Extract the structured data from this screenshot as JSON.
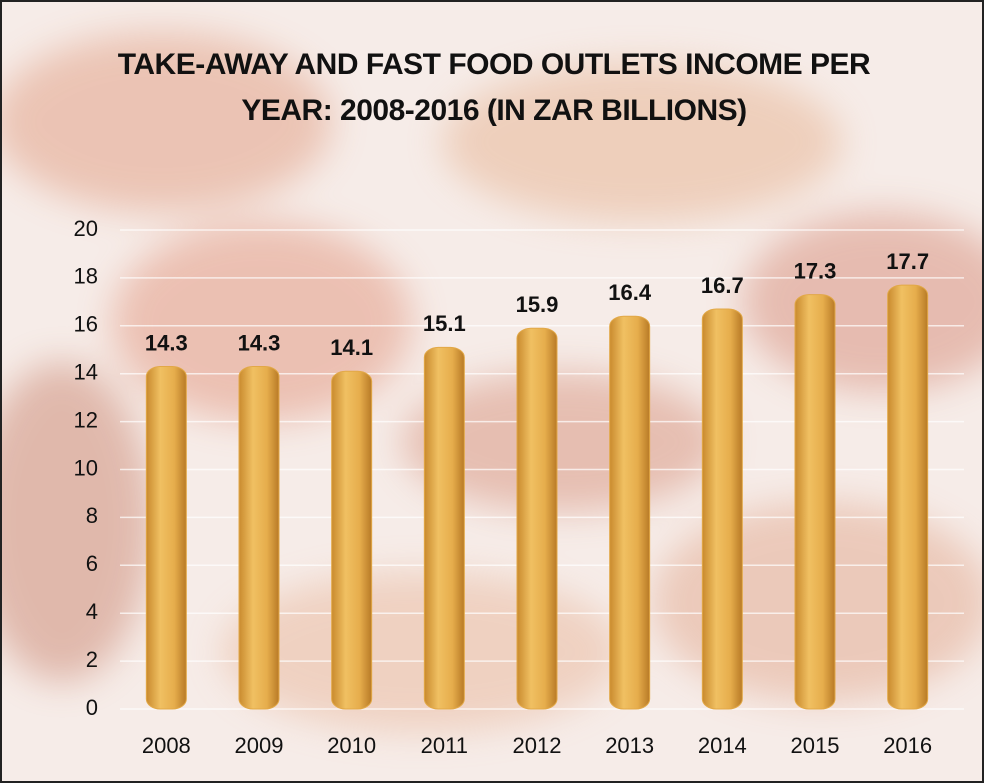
{
  "chart_data": {
    "type": "bar",
    "title": "TAKE-AWAY AND FAST FOOD OUTLETS INCOME PER YEAR: 2008-2016 (IN ZAR BILLIONS)",
    "categories": [
      "2008",
      "2009",
      "2010",
      "2011",
      "2012",
      "2013",
      "2014",
      "2015",
      "2016"
    ],
    "values": [
      14.3,
      14.3,
      14.1,
      15.1,
      15.9,
      16.4,
      16.7,
      17.3,
      17.7
    ],
    "color": "#e2a847",
    "ylim": [
      0,
      20
    ],
    "yticks": [
      0,
      2,
      4,
      6,
      8,
      10,
      12,
      14,
      16,
      18,
      20
    ],
    "grid": true
  }
}
